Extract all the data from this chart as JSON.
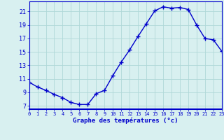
{
  "hours": [
    0,
    1,
    2,
    3,
    4,
    5,
    6,
    7,
    8,
    9,
    10,
    11,
    12,
    13,
    14,
    15,
    16,
    17,
    18,
    19,
    20,
    21,
    22,
    23
  ],
  "temps": [
    10.5,
    9.8,
    9.3,
    8.7,
    8.2,
    7.5,
    7.2,
    7.2,
    8.8,
    9.3,
    11.5,
    13.5,
    15.3,
    17.3,
    19.2,
    21.1,
    21.7,
    21.5,
    21.6,
    21.3,
    19.0,
    17.0,
    16.8,
    15.1
  ],
  "line_color": "#0000cc",
  "bg_color": "#d8f0f0",
  "grid_color": "#b0d8d8",
  "xlabel": "Graphe des températures (°c)",
  "xlabel_color": "#0000cc",
  "tick_color": "#0000cc",
  "xlim": [
    0,
    23
  ],
  "ylim": [
    6.5,
    22.5
  ],
  "yticks": [
    7,
    9,
    11,
    13,
    15,
    17,
    19,
    21
  ],
  "xticks": [
    0,
    1,
    2,
    3,
    4,
    5,
    6,
    7,
    8,
    9,
    10,
    11,
    12,
    13,
    14,
    15,
    16,
    17,
    18,
    19,
    20,
    21,
    22,
    23
  ],
  "marker": "+",
  "markersize": 4.0,
  "linewidth": 1.0
}
